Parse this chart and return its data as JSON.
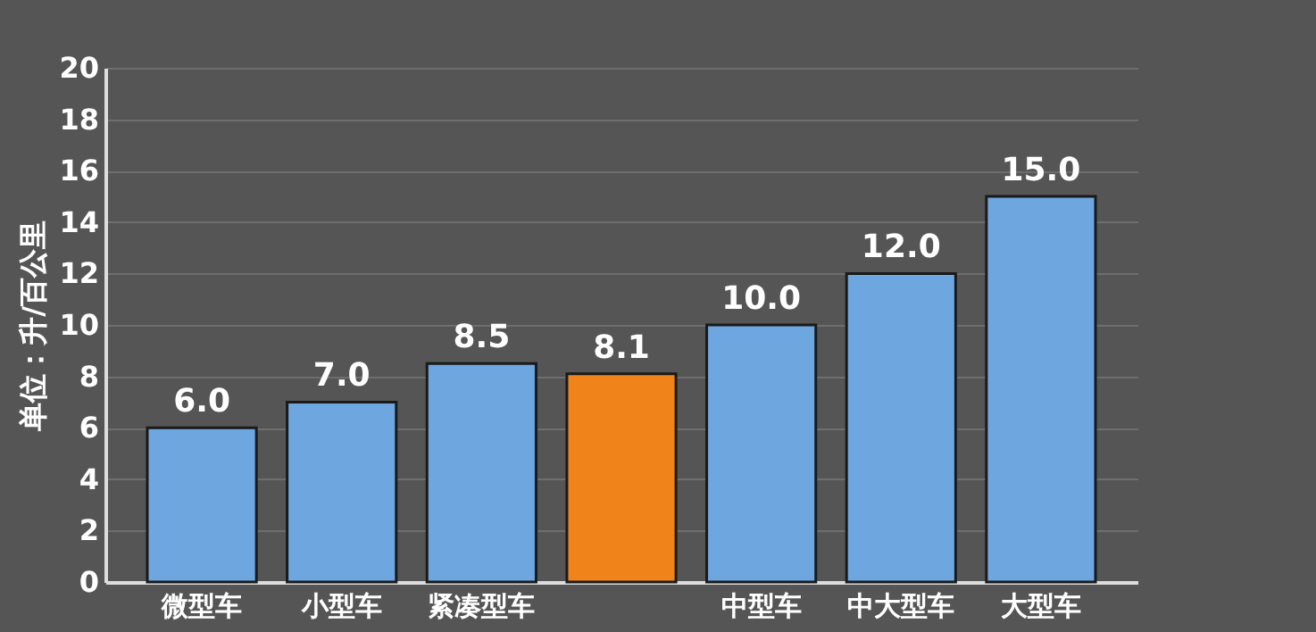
{
  "chart_data": {
    "type": "bar",
    "ylabel": "单位：升/百公里",
    "categories": [
      "微型车",
      "小型车",
      "紧凑型车",
      null,
      "中型车",
      "中大型车",
      "大型车"
    ],
    "values": [
      6.0,
      7.0,
      8.5,
      8.1,
      10.0,
      12.0,
      15.0
    ],
    "value_labels": [
      "6.0",
      "7.0",
      "8.5",
      "8.1",
      "10.0",
      "12.0",
      "15.0"
    ],
    "colors": [
      "#6ea6e0",
      "#6ea6e0",
      "#6ea6e0",
      "#f0841a",
      "#6ea6e0",
      "#6ea6e0",
      "#6ea6e0"
    ],
    "ylim": [
      0,
      20
    ],
    "yticks": [
      0,
      2,
      4,
      6,
      8,
      10,
      12,
      14,
      16,
      18,
      20
    ],
    "grid": "y",
    "legend": false
  }
}
